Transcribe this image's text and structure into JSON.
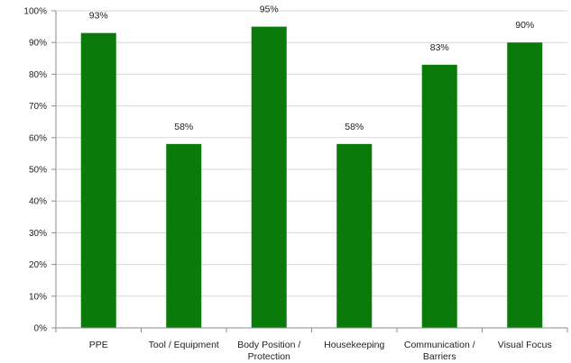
{
  "chart_data": {
    "type": "bar",
    "categories": [
      [
        "PPE"
      ],
      [
        "Tool / Equipment"
      ],
      [
        "Body Position /",
        "Protection"
      ],
      [
        "Housekeeping"
      ],
      [
        "Communication /",
        "Barriers"
      ],
      [
        "Visual Focus"
      ]
    ],
    "values": [
      93,
      58,
      95,
      58,
      83,
      90
    ],
    "data_labels": [
      "93%",
      "58%",
      "95%",
      "58%",
      "83%",
      "90%"
    ],
    "title": "",
    "xlabel": "",
    "ylabel": "",
    "ylim": [
      0,
      100
    ],
    "y_ticks": [
      "0%",
      "10%",
      "20%",
      "30%",
      "40%",
      "50%",
      "60%",
      "70%",
      "80%",
      "90%",
      "100%"
    ],
    "grid": true,
    "legend": "none",
    "bar_color": "#0a7a0a"
  }
}
